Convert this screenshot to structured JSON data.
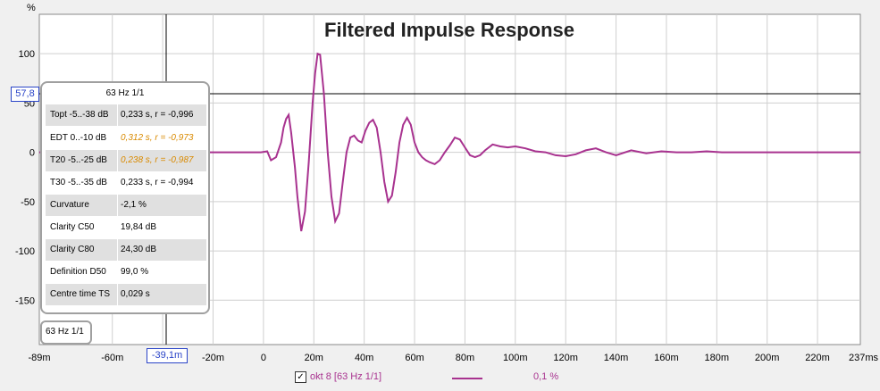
{
  "chart_data": {
    "type": "line",
    "title": "Filtered Impulse Response",
    "ylabel": "%",
    "xlabel": "",
    "x_unit": "ms",
    "xlim": [
      -89,
      237
    ],
    "ylim": [
      -195,
      140
    ],
    "x_ticks": [
      -89,
      -60,
      -40,
      -20,
      0,
      20,
      40,
      60,
      80,
      100,
      120,
      140,
      160,
      180,
      200,
      220,
      237
    ],
    "x_tick_labels": [
      "-89m",
      "-60m",
      "-39,1m",
      "-20m",
      "0",
      "20m",
      "40m",
      "60m",
      "80m",
      "100m",
      "120m",
      "140m",
      "160m",
      "180m",
      "200m",
      "220m",
      "237ms"
    ],
    "y_ticks": [
      100,
      50,
      0,
      -50,
      -100,
      -150
    ],
    "y_tick_labels": [
      "100",
      "50",
      "0",
      "-50",
      "-100",
      "-150"
    ],
    "grid": true,
    "series": [
      {
        "name": "okt 8 [63 Hz 1/1]",
        "color": "#a8328f",
        "x": [
          -89,
          -60,
          -40,
          -20,
          -5,
          -1,
          1.5,
          3,
          5,
          7,
          8,
          9,
          10,
          11,
          12.5,
          13.5,
          15,
          16.5,
          18,
          19.5,
          20.5,
          21.5,
          22.5,
          24,
          25.5,
          27,
          28.5,
          30,
          31.5,
          33,
          34.5,
          36,
          37.5,
          39,
          40.5,
          42,
          43.5,
          45,
          46.5,
          48,
          49.5,
          51,
          52.5,
          54,
          55.5,
          57,
          58.5,
          60,
          61.5,
          63,
          64.5,
          66,
          68,
          70,
          72,
          74,
          76,
          78,
          80,
          82,
          84,
          86,
          88,
          91,
          94,
          97,
          100,
          104,
          108,
          112,
          116,
          120,
          124,
          128,
          132,
          136,
          140,
          146,
          152,
          158,
          164,
          170,
          176,
          182,
          188,
          194,
          200,
          206,
          212,
          218,
          224,
          230,
          237
        ],
        "y": [
          0,
          0,
          0,
          0,
          0,
          0,
          1,
          -8,
          -5,
          10,
          25,
          34,
          38,
          20,
          -15,
          -45,
          -80,
          -60,
          -10,
          50,
          80,
          100,
          99,
          60,
          0,
          -45,
          -70,
          -62,
          -30,
          0,
          15,
          17,
          12,
          10,
          22,
          30,
          33,
          25,
          0,
          -30,
          -50,
          -44,
          -20,
          10,
          28,
          35,
          28,
          10,
          0,
          -5,
          -8,
          -10,
          -12,
          -8,
          0,
          7,
          15,
          13,
          5,
          -3,
          -5,
          -3,
          2,
          8,
          6,
          5,
          6,
          4,
          1,
          0,
          -3,
          -4,
          -2,
          2,
          4,
          0,
          -3,
          2,
          -1,
          1,
          0,
          0,
          1,
          0,
          0,
          0,
          0,
          0,
          0,
          0,
          0,
          0,
          0
        ]
      }
    ]
  },
  "cursor": {
    "x_label": "-39,1m",
    "y_label": "57,8"
  },
  "panel": {
    "title": "63 Hz 1/1",
    "rows": [
      {
        "label": "Topt -5..-38 dB",
        "value": "0,233 s,  r = -0,996",
        "highlight": false
      },
      {
        "label": "EDT  0..-10 dB",
        "value": "0,312 s,  r = -0,973",
        "highlight": true
      },
      {
        "label": "T20 -5..-25 dB",
        "value": "0,238 s,  r = -0,987",
        "highlight": true
      },
      {
        "label": "T30 -5..-35 dB",
        "value": "0,233 s,  r = -0,994",
        "highlight": false
      },
      {
        "label": "Curvature",
        "value": "-2,1 %",
        "highlight": false
      },
      {
        "label": "Clarity C50",
        "value": "19,84 dB",
        "highlight": false
      },
      {
        "label": "Clarity C80",
        "value": "24,30 dB",
        "highlight": false
      },
      {
        "label": "Definition D50",
        "value": "99,0 %",
        "highlight": false
      },
      {
        "label": "Centre time TS",
        "value": "0,029 s",
        "highlight": false
      }
    ]
  },
  "band_selector": {
    "label": "63 Hz 1/1"
  },
  "legend": {
    "checkbox_mark": "✓",
    "series_label": "okt 8 [63 Hz 1/1]",
    "value_label": "0,1 %",
    "line_color": "#a8328f"
  }
}
